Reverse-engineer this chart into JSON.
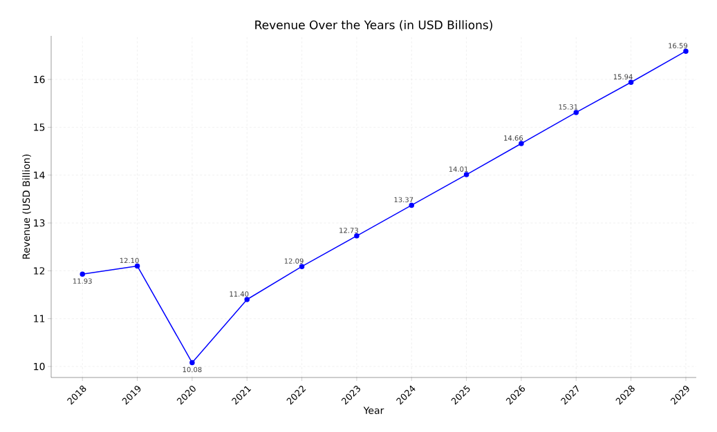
{
  "chart_data": {
    "type": "line",
    "title": "Revenue Over the Years (in USD Billions)",
    "xlabel": "Year",
    "ylabel": "Revenue (USD Billion)",
    "categories": [
      "2018",
      "2019",
      "2020",
      "2021",
      "2022",
      "2023",
      "2024",
      "2025",
      "2026",
      "2027",
      "2028",
      "2029"
    ],
    "series": [
      {
        "color": "#0000ff",
        "values": [
          11.93,
          12.1,
          10.08,
          11.4,
          12.09,
          12.73,
          13.37,
          14.01,
          14.66,
          15.31,
          15.94,
          16.59
        ],
        "value_labels": [
          "11.93",
          "12.10",
          "10.08",
          "11.40",
          "12.09",
          "12.73",
          "13.37",
          "14.01",
          "14.66",
          "15.31",
          "15.94",
          "16.59"
        ]
      }
    ],
    "ylim": [
      9.77,
      16.91
    ],
    "yticks": [
      10,
      11,
      12,
      13,
      14,
      15,
      16
    ],
    "grid": true,
    "marker": "circle",
    "line_style": "solid"
  }
}
